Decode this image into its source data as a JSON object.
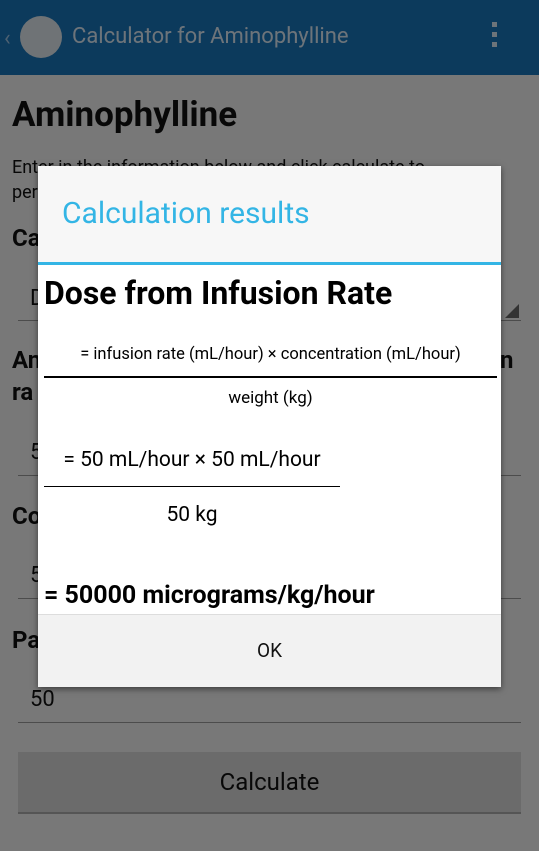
{
  "action_bar": {
    "title": "Calculator for Aminophylline"
  },
  "page": {
    "heading": "Aminophylline",
    "intro": [
      "Enter in the information below and click calculate to",
      "per"
    ],
    "labels": [
      "Ca",
      "An",
      "n",
      "ra",
      "Co",
      "Pa"
    ],
    "fields": [
      "D",
      "5",
      "5",
      "50"
    ],
    "button": "Calculate"
  },
  "dialog": {
    "title": "Calculation results",
    "heading": "Dose from Infusion Rate",
    "formula": {
      "numerator": "= infusion rate (mL/hour) × concentration (mL/hour)",
      "denominator": "weight (kg)"
    },
    "calculation": {
      "numerator": "= 50 mL/hour × 50 mL/hour",
      "denominator": "50 kg"
    },
    "result": "= 50000 micrograms/kg/hour",
    "button": "OK"
  }
}
